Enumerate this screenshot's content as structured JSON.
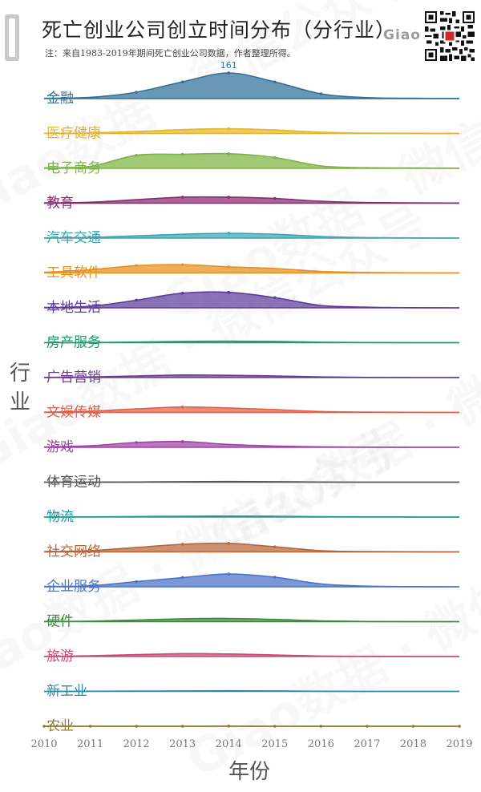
{
  "header": {
    "title": "死亡创业公司创立时间分布（分行业）",
    "note": "注：来自1983-2019年期间死亡创业公司数据，作者整理所得。",
    "brand": "Giao",
    "watermark_text": "Giao数据 · 微信公众号"
  },
  "colors": {
    "金融": "#2f6f9a",
    "医疗健康": "#e8b52a",
    "电子商务": "#7cb342",
    "教育": "#8a2a72",
    "汽车交通": "#3aa6b0",
    "工具软件": "#e8901e",
    "本地生活": "#5b3a9c",
    "房产服务": "#1f9a6a",
    "广告营销": "#6a3d8c",
    "文娱传媒": "#e0604a",
    "游戏": "#a042a8",
    "体育运动": "#555555",
    "物流": "#1a9a9a",
    "社交网络": "#b8653a",
    "企业服务": "#4a72c8",
    "硬件": "#3a8a3a",
    "旅游": "#c84a7a",
    "新工业": "#2a8aa8",
    "农业": "#8a7a2a"
  },
  "chart_data": {
    "type": "ridgeline",
    "xlabel": "年份",
    "ylabel": "行业",
    "x": [
      2010,
      2011,
      2012,
      2013,
      2014,
      2015,
      2016,
      2017,
      2018,
      2019
    ],
    "x_ticks": [
      "2010",
      "2011",
      "2012",
      "2013",
      "2014",
      "2015",
      "2016",
      "2017",
      "2018",
      "2019"
    ],
    "annotation": {
      "series": "金融",
      "x": 2014,
      "label": "161"
    },
    "series": [
      {
        "name": "金融",
        "values": [
          2,
          8,
          40,
          105,
          161,
          105,
          30,
          6,
          2,
          1
        ]
      },
      {
        "name": "医疗健康",
        "values": [
          1,
          3,
          12,
          24,
          30,
          22,
          8,
          2,
          1,
          0
        ]
      },
      {
        "name": "电子商务",
        "values": [
          3,
          12,
          82,
          88,
          92,
          68,
          15,
          4,
          2,
          1
        ]
      },
      {
        "name": "教育",
        "values": [
          2,
          6,
          22,
          38,
          38,
          30,
          12,
          4,
          2,
          1
        ]
      },
      {
        "name": "汽车交通",
        "values": [
          1,
          4,
          14,
          24,
          30,
          24,
          10,
          3,
          1,
          0
        ]
      },
      {
        "name": "工具软件",
        "values": [
          4,
          20,
          46,
          52,
          38,
          28,
          10,
          3,
          1,
          0
        ]
      },
      {
        "name": "本地生活",
        "values": [
          2,
          10,
          48,
          92,
          97,
          64,
          15,
          4,
          1,
          0
        ]
      },
      {
        "name": "房产服务",
        "values": [
          0,
          1,
          4,
          8,
          10,
          8,
          3,
          1,
          0,
          0
        ]
      },
      {
        "name": "广告营销",
        "values": [
          1,
          4,
          10,
          16,
          14,
          10,
          4,
          1,
          0,
          0
        ]
      },
      {
        "name": "文娱传媒",
        "values": [
          2,
          8,
          22,
          34,
          28,
          18,
          6,
          2,
          1,
          0
        ]
      },
      {
        "name": "游戏",
        "values": [
          2,
          10,
          30,
          36,
          18,
          8,
          3,
          1,
          0,
          0
        ]
      },
      {
        "name": "体育运动",
        "values": [
          0,
          0,
          1,
          3,
          4,
          3,
          1,
          0,
          0,
          0
        ]
      },
      {
        "name": "物流",
        "values": [
          0,
          1,
          3,
          5,
          6,
          5,
          2,
          1,
          0,
          0
        ]
      },
      {
        "name": "社交网络",
        "values": [
          2,
          8,
          28,
          48,
          54,
          32,
          8,
          2,
          1,
          0
        ]
      },
      {
        "name": "企业服务",
        "values": [
          2,
          6,
          32,
          58,
          80,
          60,
          18,
          4,
          1,
          0
        ]
      },
      {
        "name": "硬件",
        "values": [
          1,
          3,
          10,
          18,
          20,
          14,
          5,
          1,
          0,
          0
        ]
      },
      {
        "name": "旅游",
        "values": [
          1,
          5,
          12,
          18,
          16,
          10,
          3,
          1,
          0,
          0
        ]
      },
      {
        "name": "新工业",
        "values": [
          0,
          1,
          2,
          3,
          4,
          3,
          1,
          0,
          0,
          0
        ]
      },
      {
        "name": "农业",
        "values": [
          0,
          0,
          0,
          0,
          1,
          0,
          0,
          0,
          0,
          0
        ]
      }
    ]
  }
}
